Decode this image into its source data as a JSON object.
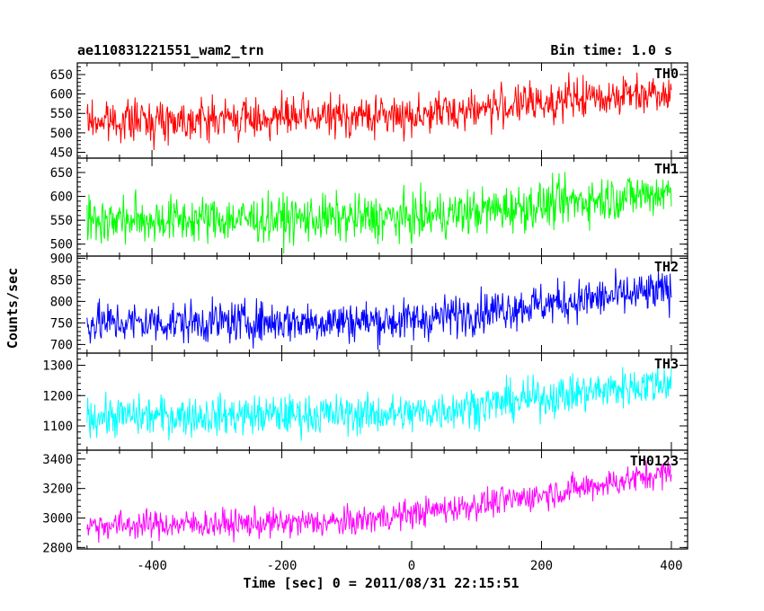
{
  "chart_data": {
    "type": "line",
    "title": "ae110831221551_wam2_trn",
    "subtitle": "Bin time: 1.0 s",
    "xlabel": "Time [sec] 0 = 2011/08/31 22:15:51",
    "ylabel": "Counts/sec",
    "xlim": [
      -515,
      425
    ],
    "xticks": [
      -400,
      -200,
      0,
      200,
      400
    ],
    "grid": false,
    "panels": [
      {
        "name": "TH0",
        "color": "#ff0000",
        "ylim": [
          435,
          680
        ],
        "yticks": [
          450,
          500,
          550,
          600,
          650
        ],
        "trend": [
          [
            -500,
            530
          ],
          [
            0,
            545
          ],
          [
            150,
            570
          ],
          [
            400,
            610
          ]
        ],
        "noise": 36
      },
      {
        "name": "TH1",
        "color": "#00ff00",
        "ylim": [
          475,
          680
        ],
        "yticks": [
          500,
          550,
          600,
          650
        ],
        "trend": [
          [
            -500,
            550
          ],
          [
            0,
            555
          ],
          [
            150,
            575
          ],
          [
            400,
            610
          ]
        ],
        "noise": 34
      },
      {
        "name": "TH2",
        "color": "#0000ff",
        "ylim": [
          680,
          905
        ],
        "yticks": [
          700,
          750,
          800,
          850,
          900
        ],
        "trend": [
          [
            -500,
            750
          ],
          [
            0,
            755
          ],
          [
            150,
            785
          ],
          [
            400,
            825
          ]
        ],
        "noise": 34
      },
      {
        "name": "TH3",
        "color": "#00ffff",
        "ylim": [
          1020,
          1340
        ],
        "yticks": [
          1100,
          1200,
          1300
        ],
        "trend": [
          [
            -500,
            1130
          ],
          [
            0,
            1140
          ],
          [
            150,
            1180
          ],
          [
            400,
            1245
          ]
        ],
        "noise": 46
      },
      {
        "name": "TH0123",
        "color": "#ff00ff",
        "ylim": [
          2790,
          3460
        ],
        "yticks": [
          2800,
          3000,
          3200,
          3400
        ],
        "trend": [
          [
            -500,
            2950
          ],
          [
            -100,
            2970
          ],
          [
            150,
            3120
          ],
          [
            400,
            3310
          ]
        ],
        "noise": 68
      }
    ],
    "x_range": [
      -500,
      400
    ],
    "bin": 1.0
  }
}
